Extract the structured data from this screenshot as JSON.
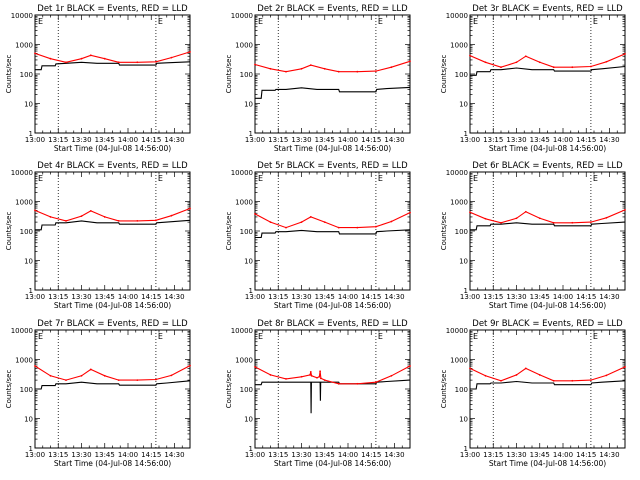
{
  "x_axis": {
    "ticks": [
      "13:00",
      "13:15",
      "13:30",
      "13:45",
      "14:00",
      "14:15",
      "14:30"
    ],
    "tick_values_min": [
      0,
      15,
      30,
      45,
      60,
      75,
      90
    ],
    "range_min": [
      0,
      100
    ],
    "label": "Start Time (04-Jul-08 14:56:00)"
  },
  "y_axis": {
    "label": "Counts/sec",
    "ticks": [
      "1",
      "10",
      "100",
      "1000",
      "10000"
    ],
    "tick_values": [
      1,
      10,
      100,
      1000,
      10000
    ],
    "scale": "log",
    "range": [
      1,
      10000
    ]
  },
  "vertical_markers_min": [
    15,
    78
  ],
  "corner_flags": [
    "E",
    "E"
  ],
  "colors": {
    "events": "#000000",
    "lld": "#ff0000",
    "axes": "#000000"
  },
  "chart_data": [
    {
      "type": "line",
      "title": "Det 1r BLACK = Events, RED = LLD",
      "series": [
        {
          "name": "Events",
          "x": [
            0,
            4,
            4.5,
            13,
            13.5,
            20,
            30,
            40,
            54,
            54.5,
            78,
            78.5,
            85,
            100
          ],
          "y": [
            140,
            140,
            190,
            190,
            220,
            230,
            250,
            230,
            230,
            200,
            200,
            230,
            240,
            260
          ]
        },
        {
          "name": "LLD",
          "x": [
            0,
            10,
            20,
            30,
            36,
            45,
            54,
            66,
            78,
            88,
            100
          ],
          "y": [
            500,
            330,
            250,
            330,
            430,
            330,
            250,
            250,
            260,
            360,
            560
          ]
        }
      ]
    },
    {
      "type": "line",
      "title": "Det 2r BLACK = Events, RED = LLD",
      "series": [
        {
          "name": "Events",
          "x": [
            0,
            4,
            4.5,
            13,
            13.5,
            20,
            30,
            40,
            54,
            54.5,
            78,
            78.5,
            85,
            100
          ],
          "y": [
            15,
            15,
            28,
            28,
            30,
            30,
            34,
            30,
            30,
            25,
            25,
            30,
            32,
            35
          ]
        },
        {
          "name": "LLD",
          "x": [
            0,
            10,
            20,
            30,
            36,
            45,
            54,
            66,
            78,
            88,
            100
          ],
          "y": [
            210,
            150,
            120,
            150,
            200,
            150,
            120,
            120,
            125,
            170,
            270
          ]
        }
      ]
    },
    {
      "type": "line",
      "title": "Det 3r BLACK = Events, RED = LLD",
      "series": [
        {
          "name": "Events",
          "x": [
            0,
            4,
            4.5,
            13,
            13.5,
            20,
            30,
            40,
            54,
            54.5,
            78,
            78.5,
            85,
            100
          ],
          "y": [
            90,
            90,
            120,
            120,
            140,
            140,
            160,
            140,
            140,
            125,
            125,
            140,
            150,
            180
          ]
        },
        {
          "name": "LLD",
          "x": [
            0,
            10,
            20,
            30,
            36,
            45,
            54,
            66,
            78,
            88,
            100
          ],
          "y": [
            420,
            250,
            170,
            250,
            400,
            250,
            170,
            170,
            180,
            260,
            480
          ]
        }
      ]
    },
    {
      "type": "line",
      "title": "Det 4r BLACK = Events, RED = LLD",
      "series": [
        {
          "name": "Events",
          "x": [
            0,
            4,
            4.5,
            13,
            13.5,
            20,
            30,
            40,
            54,
            54.5,
            78,
            78.5,
            85,
            100
          ],
          "y": [
            110,
            110,
            160,
            160,
            190,
            190,
            220,
            190,
            190,
            170,
            170,
            190,
            200,
            230
          ]
        },
        {
          "name": "LLD",
          "x": [
            0,
            10,
            20,
            30,
            36,
            45,
            54,
            66,
            78,
            88,
            100
          ],
          "y": [
            500,
            300,
            220,
            320,
            480,
            300,
            220,
            220,
            230,
            330,
            580
          ]
        }
      ]
    },
    {
      "type": "line",
      "title": "Det 5r BLACK = Events, RED = LLD",
      "series": [
        {
          "name": "Events",
          "x": [
            0,
            4,
            4.5,
            13,
            13.5,
            20,
            30,
            40,
            54,
            54.5,
            78,
            78.5,
            85,
            100
          ],
          "y": [
            60,
            60,
            85,
            85,
            95,
            95,
            105,
            95,
            95,
            80,
            80,
            95,
            100,
            110
          ]
        },
        {
          "name": "LLD",
          "x": [
            0,
            10,
            20,
            30,
            36,
            45,
            54,
            66,
            78,
            88,
            100
          ],
          "y": [
            380,
            200,
            130,
            200,
            300,
            200,
            130,
            130,
            140,
            210,
            420
          ]
        }
      ]
    },
    {
      "type": "line",
      "title": "Det 6r BLACK = Events, RED = LLD",
      "series": [
        {
          "name": "Events",
          "x": [
            0,
            4,
            4.5,
            13,
            13.5,
            20,
            30,
            40,
            54,
            54.5,
            78,
            78.5,
            85,
            100
          ],
          "y": [
            110,
            110,
            150,
            150,
            170,
            170,
            190,
            170,
            170,
            150,
            150,
            170,
            180,
            200
          ]
        },
        {
          "name": "LLD",
          "x": [
            0,
            10,
            20,
            30,
            36,
            45,
            54,
            66,
            78,
            88,
            100
          ],
          "y": [
            430,
            260,
            190,
            270,
            450,
            270,
            190,
            190,
            200,
            280,
            520
          ]
        }
      ]
    },
    {
      "type": "line",
      "title": "Det 7r BLACK = Events, RED = LLD",
      "series": [
        {
          "name": "Events",
          "x": [
            0,
            4,
            4.5,
            13,
            13.5,
            20,
            30,
            40,
            54,
            54.5,
            78,
            78.5,
            85,
            100
          ],
          "y": [
            100,
            100,
            130,
            130,
            150,
            150,
            170,
            150,
            150,
            135,
            135,
            150,
            160,
            190
          ]
        },
        {
          "name": "LLD",
          "x": [
            0,
            10,
            20,
            30,
            36,
            45,
            54,
            66,
            78,
            88,
            100
          ],
          "y": [
            600,
            280,
            200,
            280,
            460,
            280,
            200,
            200,
            210,
            290,
            620
          ]
        }
      ]
    },
    {
      "type": "line",
      "title": "Det 8r BLACK = Events, RED = LLD",
      "series": [
        {
          "name": "Events",
          "x": [
            0,
            4,
            4.5,
            13,
            13.5,
            20,
            30,
            36,
            36.2,
            36.4,
            40,
            42,
            42.2,
            42.4,
            54,
            54.5,
            78,
            78.5,
            85,
            100
          ],
          "y": [
            140,
            140,
            170,
            170,
            170,
            170,
            170,
            170,
            15,
            170,
            170,
            170,
            40,
            170,
            170,
            150,
            150,
            170,
            180,
            200
          ]
        },
        {
          "name": "LLD",
          "x": [
            0,
            10,
            20,
            30,
            35.5,
            36,
            36.5,
            40,
            41.5,
            42,
            42.5,
            45,
            54,
            66,
            78,
            88,
            100
          ],
          "y": [
            560,
            300,
            220,
            260,
            300,
            380,
            280,
            240,
            260,
            400,
            230,
            200,
            150,
            150,
            170,
            280,
            600
          ]
        }
      ]
    },
    {
      "type": "line",
      "title": "Det 9r BLACK = Events, RED = LLD",
      "series": [
        {
          "name": "Events",
          "x": [
            0,
            4,
            4.5,
            13,
            13.5,
            20,
            30,
            40,
            54,
            54.5,
            78,
            78.5,
            85,
            100
          ],
          "y": [
            100,
            100,
            150,
            150,
            160,
            160,
            180,
            160,
            160,
            140,
            140,
            160,
            170,
            190
          ]
        },
        {
          "name": "LLD",
          "x": [
            0,
            10,
            20,
            30,
            36,
            45,
            54,
            66,
            78,
            88,
            100
          ],
          "y": [
            500,
            280,
            190,
            300,
            500,
            300,
            190,
            190,
            200,
            290,
            560
          ]
        }
      ]
    }
  ]
}
